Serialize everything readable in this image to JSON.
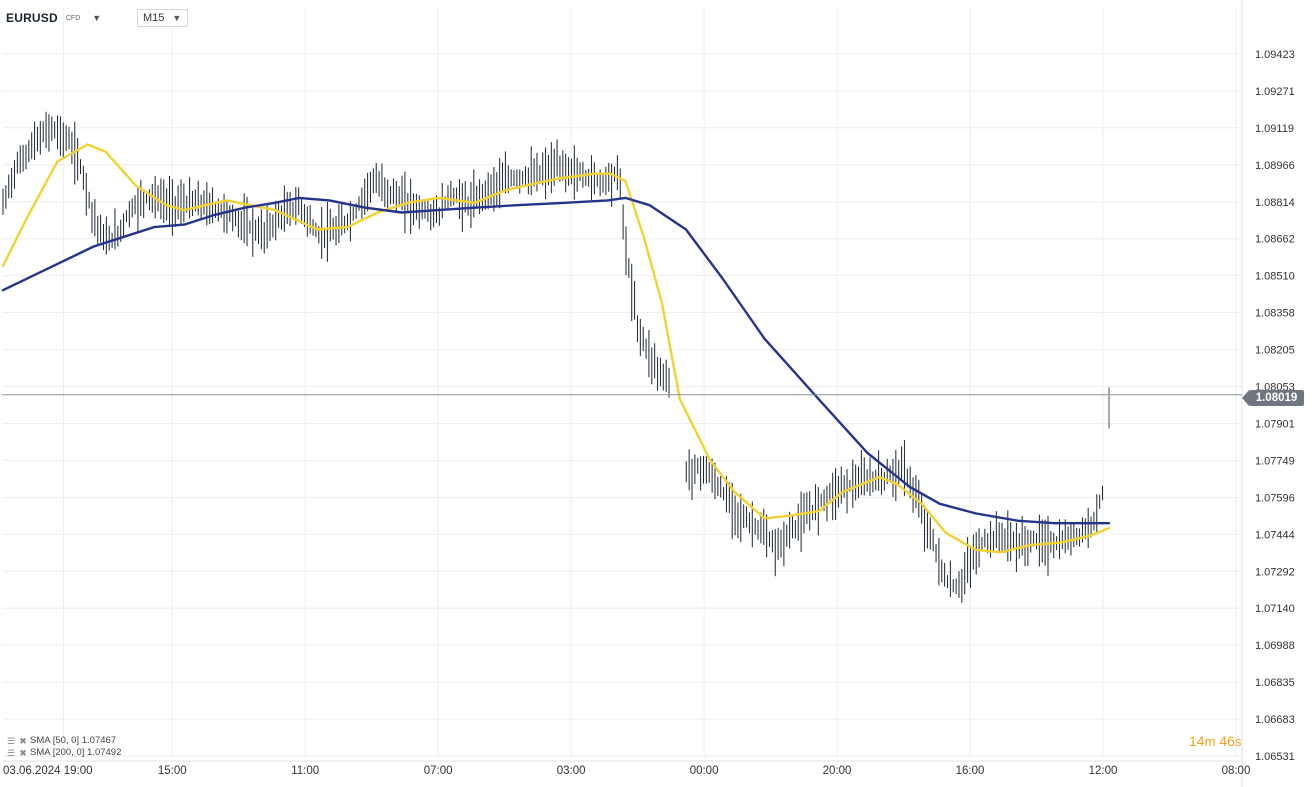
{
  "header": {
    "symbol": "EURUSD",
    "symbol_type": "CFD",
    "timeframe": "M15"
  },
  "legend": [
    {
      "label": "SMA [50, 0] 1.07467",
      "color": "#f2d232"
    },
    {
      "label": "SMA [200, 0] 1.07492",
      "color": "#24348c"
    }
  ],
  "current_price_label": "1.08019",
  "timer": {
    "minutes": "14",
    "min_unit": "m",
    "seconds": "46",
    "sec_unit": "s"
  },
  "colors": {
    "sma50": "#f2d232",
    "sma200": "#24348c",
    "candles": "#1b2433",
    "grid": "#eeeeee"
  },
  "chart_data": {
    "type": "line",
    "y_ticks": [
      "1.09423",
      "1.09271",
      "1.09119",
      "1.08966",
      "1.08814",
      "1.08662",
      "1.08510",
      "1.08358",
      "1.08205",
      "1.08053",
      "1.07901",
      "1.07749",
      "1.07596",
      "1.07444",
      "1.07292",
      "1.07140",
      "1.06988",
      "1.06835",
      "1.06683",
      "1.06531"
    ],
    "y_tick_values": [
      1.09423,
      1.09271,
      1.09119,
      1.08966,
      1.08814,
      1.08662,
      1.0851,
      1.08358,
      1.08205,
      1.08053,
      1.07901,
      1.07749,
      1.07596,
      1.07444,
      1.07292,
      1.0714,
      1.06988,
      1.06835,
      1.06683,
      1.06531
    ],
    "ylim": [
      1.06531,
      1.09575
    ],
    "x_ticks": [
      "03.06.2024 19:00",
      "15:00",
      "11:00",
      "07:00",
      "03:00",
      "00:00",
      "20:00",
      "16:00",
      "12:00",
      "08:00"
    ],
    "x_tick_pos": [
      0,
      36,
      80,
      124,
      168,
      212,
      256,
      300,
      344,
      388
    ],
    "x_range": [
      -20,
      390
    ],
    "current_price": 1.08019,
    "series": [
      {
        "name": "SMA [50, 0] 1.07467",
        "color": "#f2d232",
        "points": [
          [
            -20,
            1.0855
          ],
          [
            -12,
            1.0875
          ],
          [
            -2,
            1.0898
          ],
          [
            8,
            1.0905
          ],
          [
            14,
            1.0902
          ],
          [
            24,
            1.0888
          ],
          [
            34,
            1.088
          ],
          [
            40,
            1.0878
          ],
          [
            54,
            1.0882
          ],
          [
            70,
            1.0878
          ],
          [
            84,
            1.087
          ],
          [
            94,
            1.0871
          ],
          [
            104,
            1.0877
          ],
          [
            114,
            1.0881
          ],
          [
            124,
            1.0883
          ],
          [
            136,
            1.0881
          ],
          [
            146,
            1.0886
          ],
          [
            156,
            1.0889
          ],
          [
            164,
            1.0891
          ],
          [
            176,
            1.0893
          ],
          [
            181,
            1.0893
          ],
          [
            186,
            1.089
          ],
          [
            192,
            1.0867
          ],
          [
            198,
            1.084
          ],
          [
            204,
            1.08
          ],
          [
            208,
            1.079
          ],
          [
            214,
            1.0775
          ],
          [
            222,
            1.0762
          ],
          [
            232,
            1.0751
          ],
          [
            240,
            1.0752
          ],
          [
            250,
            1.0754
          ],
          [
            258,
            1.0762
          ],
          [
            270,
            1.0768
          ],
          [
            276,
            1.0765
          ],
          [
            284,
            1.0757
          ],
          [
            292,
            1.0745
          ],
          [
            302,
            1.0738
          ],
          [
            310,
            1.0737
          ],
          [
            320,
            1.074
          ],
          [
            330,
            1.0741
          ],
          [
            340,
            1.0744
          ],
          [
            346,
            1.0747
          ]
        ]
      },
      {
        "name": "SMA [200, 0] 1.07492",
        "color": "#24348c",
        "points": [
          [
            -20,
            1.0845
          ],
          [
            0,
            1.0857
          ],
          [
            10,
            1.0863
          ],
          [
            20,
            1.0867
          ],
          [
            30,
            1.0871
          ],
          [
            40,
            1.0872
          ],
          [
            50,
            1.0876
          ],
          [
            60,
            1.0879
          ],
          [
            70,
            1.0881
          ],
          [
            78,
            1.0883
          ],
          [
            88,
            1.0882
          ],
          [
            100,
            1.0879
          ],
          [
            112,
            1.0877
          ],
          [
            124,
            1.0878
          ],
          [
            136,
            1.0879
          ],
          [
            150,
            1.088
          ],
          [
            166,
            1.0881
          ],
          [
            180,
            1.0882
          ],
          [
            186,
            1.0883
          ],
          [
            194,
            1.088
          ],
          [
            206,
            1.087
          ],
          [
            218,
            1.085
          ],
          [
            232,
            1.0825
          ],
          [
            250,
            1.08
          ],
          [
            266,
            1.0778
          ],
          [
            280,
            1.0764
          ],
          [
            290,
            1.0757
          ],
          [
            302,
            1.0753
          ],
          [
            316,
            1.075
          ],
          [
            328,
            1.0749
          ],
          [
            334,
            1.0749
          ],
          [
            338,
            1.0749
          ],
          [
            346,
            1.0749
          ]
        ]
      }
    ]
  }
}
